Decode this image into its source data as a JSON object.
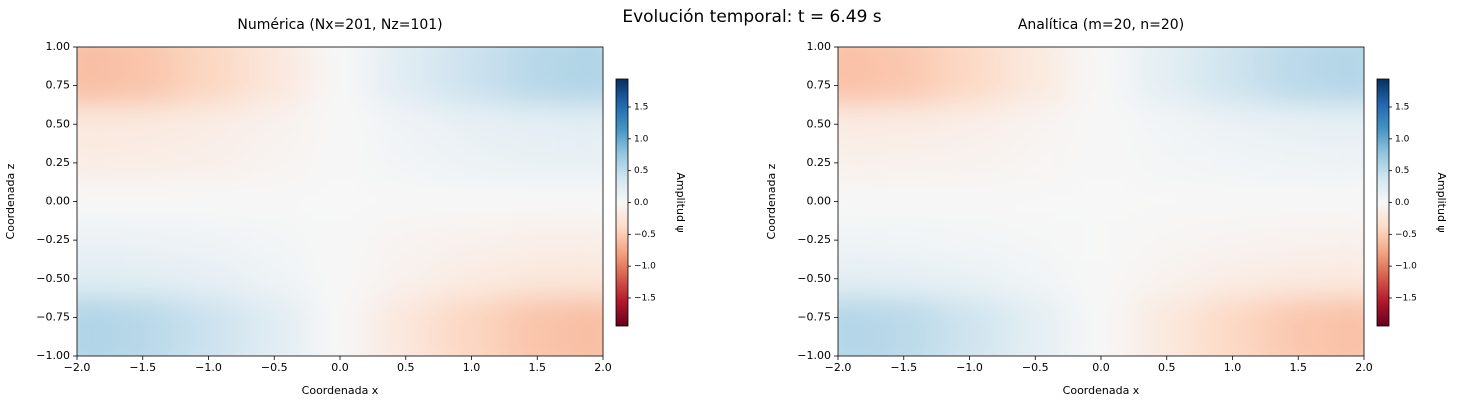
{
  "title": "Evolución temporal: t = 6.49 s",
  "chart_data": [
    {
      "type": "heatmap",
      "title": "Numérica (Nx=201, Nz=101)",
      "x_label": "Coordenada x",
      "y_label": "Coordenada z",
      "colormap": "RdBu",
      "x": [
        -2,
        -1.5,
        -1,
        -0.5,
        0,
        0.5,
        1,
        1.5,
        2
      ],
      "y": [
        1,
        0.75,
        0.5,
        0.25,
        0,
        -0.25,
        -0.5,
        -0.75,
        -1
      ],
      "values": [
        [
          -0.6,
          -0.55,
          -0.42,
          -0.23,
          0,
          0.23,
          0.42,
          0.55,
          0.6
        ],
        [
          -0.6,
          -0.55,
          -0.42,
          -0.23,
          0,
          0.23,
          0.42,
          0.55,
          0.6
        ],
        [
          -0.21,
          -0.19,
          -0.15,
          -0.08,
          0,
          0.08,
          0.15,
          0.19,
          0.21
        ],
        [
          -0.15,
          -0.14,
          -0.11,
          -0.06,
          0,
          0.06,
          0.11,
          0.14,
          0.15
        ],
        [
          0,
          0,
          0,
          0,
          0,
          0,
          0,
          0,
          0
        ],
        [
          0.12,
          0.11,
          0.08,
          0.05,
          0,
          -0.05,
          -0.08,
          -0.11,
          -0.12
        ],
        [
          0.24,
          0.22,
          0.17,
          0.09,
          0,
          -0.09,
          -0.17,
          -0.22,
          -0.24
        ],
        [
          0.6,
          0.55,
          0.42,
          0.23,
          0,
          -0.23,
          -0.42,
          -0.55,
          -0.6
        ],
        [
          0.6,
          0.55,
          0.42,
          0.23,
          0,
          -0.23,
          -0.42,
          -0.55,
          -0.6
        ]
      ],
      "xlim": [
        -2,
        2
      ],
      "ylim": [
        -1,
        1
      ],
      "xticks": [
        {
          "value": -2,
          "label": "−2.0"
        },
        {
          "value": -1.5,
          "label": "−1.5"
        },
        {
          "value": -1,
          "label": "−1.0"
        },
        {
          "value": -0.5,
          "label": "−0.5"
        },
        {
          "value": 0,
          "label": "0.0"
        },
        0.5,
        {
          "value": 1,
          "label": "1.0"
        },
        1.5,
        {
          "value": 2,
          "label": "2.0"
        }
      ],
      "yticks": [
        {
          "value": -1,
          "label": "−1.00"
        },
        {
          "value": -0.75,
          "label": "−0.75"
        },
        {
          "value": -0.5,
          "label": "−0.50"
        },
        {
          "value": -0.25,
          "label": "−0.25"
        },
        {
          "value": 0,
          "label": "0.00"
        },
        0.25,
        {
          "value": 0.5,
          "label": "0.50"
        },
        0.75,
        {
          "value": 1,
          "label": "1.00"
        }
      ],
      "colorbar": {
        "label": "Amplitud ψ",
        "clim": [
          -1.94,
          1.94
        ],
        "ticks": [
          {
            "value": -1.5,
            "label": "−1.5"
          },
          {
            "value": -1,
            "label": "−1.0"
          },
          {
            "value": -0.5,
            "label": "−0.5"
          },
          {
            "value": 0,
            "label": "0.0"
          },
          0.5,
          {
            "value": 1,
            "label": "1.0"
          },
          1.5
        ]
      }
    },
    {
      "type": "heatmap",
      "title": "Analítica (m=20, n=20)",
      "x_label": "Coordenada x",
      "y_label": "Coordenada z",
      "colormap": "RdBu",
      "x": [
        -2,
        -1.5,
        -1,
        -0.5,
        0,
        0.5,
        1,
        1.5,
        2
      ],
      "y": [
        1,
        0.75,
        0.5,
        0.25,
        0,
        -0.25,
        -0.5,
        -0.75,
        -1
      ],
      "values": [
        [
          -0.58,
          -0.53,
          -0.4,
          -0.2,
          0,
          0.2,
          0.4,
          0.53,
          0.58
        ],
        [
          -0.58,
          -0.53,
          -0.4,
          -0.2,
          0,
          0.2,
          0.4,
          0.53,
          0.58
        ],
        [
          -0.18,
          -0.16,
          -0.12,
          -0.06,
          0,
          0.06,
          0.12,
          0.16,
          0.18
        ],
        [
          -0.1,
          -0.09,
          -0.07,
          -0.04,
          0,
          0.04,
          0.07,
          0.09,
          0.1
        ],
        [
          0,
          0,
          0,
          0,
          0,
          0,
          0,
          0,
          0
        ],
        [
          0.08,
          0.07,
          0.05,
          0.03,
          0,
          -0.03,
          -0.05,
          -0.07,
          -0.08
        ],
        [
          0.2,
          0.18,
          0.14,
          0.07,
          0,
          -0.07,
          -0.14,
          -0.18,
          -0.2
        ],
        [
          0.58,
          0.53,
          0.4,
          0.2,
          0,
          -0.2,
          -0.4,
          -0.53,
          -0.58
        ],
        [
          0.58,
          0.53,
          0.4,
          0.2,
          0,
          -0.2,
          -0.4,
          -0.53,
          -0.58
        ]
      ],
      "xlim": [
        -2,
        2
      ],
      "ylim": [
        -1,
        1
      ],
      "xticks": [
        {
          "value": -2,
          "label": "−2.0"
        },
        {
          "value": -1.5,
          "label": "−1.5"
        },
        {
          "value": -1,
          "label": "−1.0"
        },
        {
          "value": -0.5,
          "label": "−0.5"
        },
        {
          "value": 0,
          "label": "0.0"
        },
        0.5,
        {
          "value": 1,
          "label": "1.0"
        },
        1.5,
        {
          "value": 2,
          "label": "2.0"
        }
      ],
      "yticks": [
        {
          "value": -1,
          "label": "−1.00"
        },
        {
          "value": -0.75,
          "label": "−0.75"
        },
        {
          "value": -0.5,
          "label": "−0.50"
        },
        {
          "value": -0.25,
          "label": "−0.25"
        },
        {
          "value": 0,
          "label": "0.00"
        },
        0.25,
        {
          "value": 0.5,
          "label": "0.50"
        },
        0.75,
        {
          "value": 1,
          "label": "1.00"
        }
      ],
      "colorbar": {
        "label": "Amplitud ψ",
        "clim": [
          -1.94,
          1.94
        ],
        "ticks": [
          {
            "value": -1.5,
            "label": "−1.5"
          },
          {
            "value": -1,
            "label": "−1.0"
          },
          {
            "value": -0.5,
            "label": "−0.5"
          },
          {
            "value": 0,
            "label": "0.0"
          },
          0.5,
          {
            "value": 1,
            "label": "1.0"
          },
          1.5
        ]
      }
    }
  ]
}
